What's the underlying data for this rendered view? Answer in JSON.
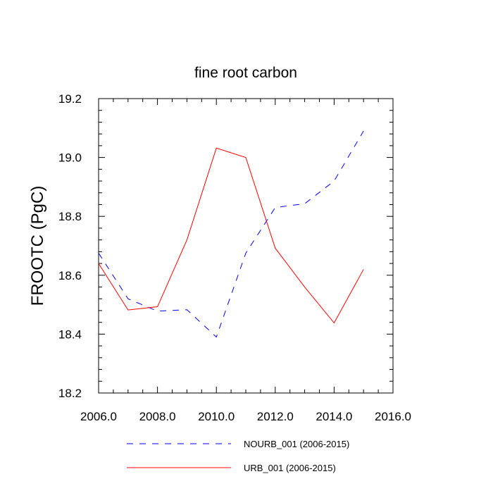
{
  "chart_data": {
    "type": "line",
    "title": "fine root carbon",
    "xlabel": "",
    "ylabel": "FROOTC  (PgC)",
    "xlim": [
      2006.0,
      2016.0
    ],
    "ylim": [
      18.2,
      19.2
    ],
    "x_ticks": [
      "2006.0",
      "2008.0",
      "2010.0",
      "2012.0",
      "2014.0",
      "2016.0"
    ],
    "y_ticks": [
      "18.2",
      "18.4",
      "18.6",
      "18.8",
      "19.0",
      "19.2"
    ],
    "x": [
      2006,
      2007,
      2008,
      2009,
      2010,
      2011,
      2012,
      2013,
      2014,
      2015
    ],
    "series": [
      {
        "name": "NOURB_001 (2006-2015)",
        "color": "#0000ff",
        "dashed": true,
        "values": [
          18.675,
          18.52,
          18.478,
          18.483,
          18.39,
          18.675,
          18.83,
          18.843,
          18.92,
          19.09
        ]
      },
      {
        "name": "URB_001 (2006-2015)",
        "color": "#ff0000",
        "dashed": false,
        "values": [
          18.64,
          18.482,
          18.493,
          18.72,
          19.032,
          19.0,
          18.692,
          18.56,
          18.438,
          18.62
        ]
      }
    ],
    "grid": false,
    "legend_position": "bottom"
  }
}
